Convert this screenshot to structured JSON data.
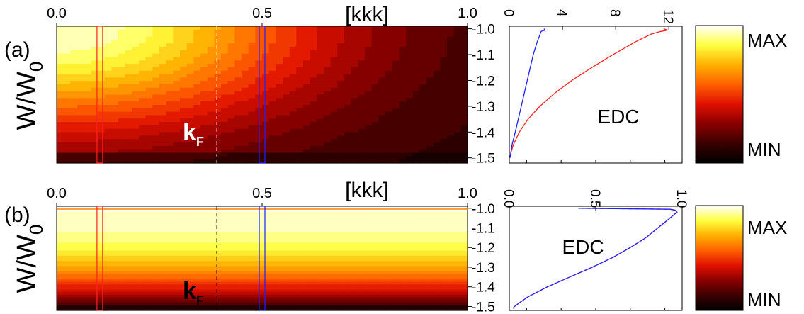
{
  "colors": {
    "heat_stops": [
      "#000000",
      "#3a0000",
      "#8a0000",
      "#e01000",
      "#ff6000",
      "#ffb000",
      "#ffff40",
      "#ffffff"
    ],
    "cut_low_k": "#ff2020",
    "cut_mid_k": "#2020ff",
    "kf_line_a": "#ffffff",
    "kf_line_b": "#000000",
    "axis": "#000000"
  },
  "colorbar": {
    "max_label": "MAX",
    "min_label": "MIN"
  },
  "chart_data": [
    {
      "panel": "(a)",
      "type": "heatmap",
      "xlabel": "[kkk]",
      "ylabel": "W/W",
      "ylabel_sub": "0",
      "xlim": [
        0.0,
        1.0
      ],
      "x_ticks": [
        "0.0",
        "0.5",
        "1.0"
      ],
      "ylim": [
        -1.52,
        -0.99
      ],
      "y_ticks": [
        "-1.0",
        "-1.1",
        "-1.2",
        "-1.3",
        "-1.4",
        "-1.5"
      ],
      "k_F": 0.39,
      "kf_label": "k",
      "kf_sub": "F",
      "intensity_model": "radial-decay",
      "cut_positions": [
        0.105,
        0.5
      ],
      "edc": {
        "type": "line",
        "label": "EDC",
        "xlim": [
          0,
          13
        ],
        "x_ticks": [
          "0",
          "4",
          "8",
          "12"
        ],
        "ylim": [
          -1.52,
          -0.99
        ],
        "series": [
          {
            "color_key": "cut_low_k",
            "w": [
              -1.0,
              -1.005,
              -1.01,
              -1.02,
              -1.05,
              -1.1,
              -1.15,
              -1.2,
              -1.25,
              -1.3,
              -1.35,
              -1.4,
              -1.45,
              -1.48,
              -1.5
            ],
            "value": [
              11.6,
              11.9,
              11.4,
              10.7,
              9.5,
              7.8,
              6.2,
              4.7,
              3.4,
              2.3,
              1.4,
              0.75,
              0.3,
              0.12,
              0.05
            ]
          },
          {
            "color_key": "cut_mid_k",
            "w": [
              -1.0,
              -1.005,
              -1.01,
              -1.05,
              -1.1,
              -1.2,
              -1.3,
              -1.4,
              -1.45,
              -1.5
            ],
            "value": [
              2.6,
              2.7,
              2.4,
              2.1,
              1.8,
              1.35,
              0.9,
              0.45,
              0.2,
              0.05
            ]
          }
        ]
      }
    },
    {
      "panel": "(b)",
      "type": "heatmap",
      "xlabel": "[kkk]",
      "ylabel": "W/W",
      "ylabel_sub": "0",
      "xlim": [
        0.0,
        1.0
      ],
      "x_ticks": [
        "0.0",
        "0.5",
        "1.0"
      ],
      "ylim": [
        -1.52,
        -0.99
      ],
      "y_ticks": [
        "-1.0",
        "-1.1",
        "-1.2",
        "-1.3",
        "-1.4",
        "-1.5"
      ],
      "k_F": 0.39,
      "kf_label": "k",
      "kf_sub": "F",
      "intensity_model": "energy-only",
      "cut_positions": [
        0.105,
        0.5
      ],
      "edc": {
        "type": "line",
        "label": "EDC",
        "xlim": [
          0,
          1.0
        ],
        "x_ticks": [
          "0.0",
          "0.5",
          "1.0"
        ],
        "ylim": [
          -1.52,
          -0.99
        ],
        "series": [
          {
            "color_key": "cut_low_k",
            "dashed": true,
            "w": [
              -1.0,
              -1.005,
              -1.01,
              -1.02,
              -1.05,
              -1.1,
              -1.15,
              -1.2,
              -1.25,
              -1.3,
              -1.35,
              -1.4,
              -1.45,
              -1.48,
              -1.5,
              -1.51
            ],
            "value": [
              0.4,
              0.93,
              0.96,
              0.97,
              0.93,
              0.86,
              0.79,
              0.7,
              0.6,
              0.48,
              0.35,
              0.22,
              0.11,
              0.06,
              0.03,
              0.02
            ]
          },
          {
            "color_key": "cut_mid_k",
            "w": [
              -1.0,
              -1.005,
              -1.01,
              -1.02,
              -1.05,
              -1.1,
              -1.15,
              -1.2,
              -1.25,
              -1.3,
              -1.35,
              -1.4,
              -1.45,
              -1.48,
              -1.5,
              -1.51
            ],
            "value": [
              0.4,
              0.93,
              0.96,
              0.97,
              0.93,
              0.86,
              0.79,
              0.7,
              0.6,
              0.48,
              0.35,
              0.22,
              0.11,
              0.06,
              0.03,
              0.02
            ]
          }
        ]
      }
    }
  ]
}
